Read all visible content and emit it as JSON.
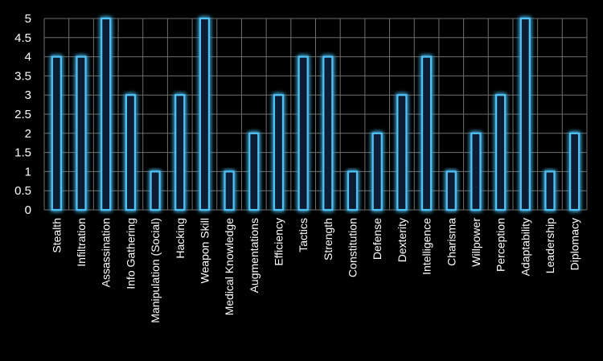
{
  "chart_data": {
    "type": "bar",
    "title": "",
    "xlabel": "",
    "ylabel": "",
    "ylim": [
      0,
      5
    ],
    "yticks": [
      0,
      0.5,
      1,
      1.5,
      2,
      2.5,
      3,
      3.5,
      4,
      4.5,
      5
    ],
    "ytick_labels": [
      "0",
      "0.5",
      "1",
      "1.5",
      "2",
      "2.5",
      "3",
      "3.5",
      "4",
      "4.5",
      "5"
    ],
    "grid": true,
    "legend": "none",
    "categories": [
      "Stealth",
      "Infiltration",
      "Assassination",
      "Info Gathering",
      "Manipulation (Social)",
      "Hacking",
      "Weapon Skill",
      "Medical Knowledge",
      "Augmentations",
      "Efficiency",
      "Tactics",
      "Strength",
      "Constitution",
      "Defense",
      "Dexterity",
      "Intelligence",
      "Charisma",
      "Willpower",
      "Perception",
      "Adaptability",
      "Leadership",
      "Diplomacy"
    ],
    "values": [
      4,
      4,
      5,
      3,
      1,
      3,
      5,
      1,
      2,
      3,
      4,
      4,
      1,
      2,
      3,
      4,
      1,
      2,
      3,
      5,
      1,
      2
    ],
    "colors": {
      "background": "#000000",
      "bar_fill": "#0b1f33",
      "bar_outline": "#4fc3f7",
      "bar_glow": "#1e90ff",
      "grid": "#6e6e6e",
      "text": "#ffffff"
    }
  }
}
